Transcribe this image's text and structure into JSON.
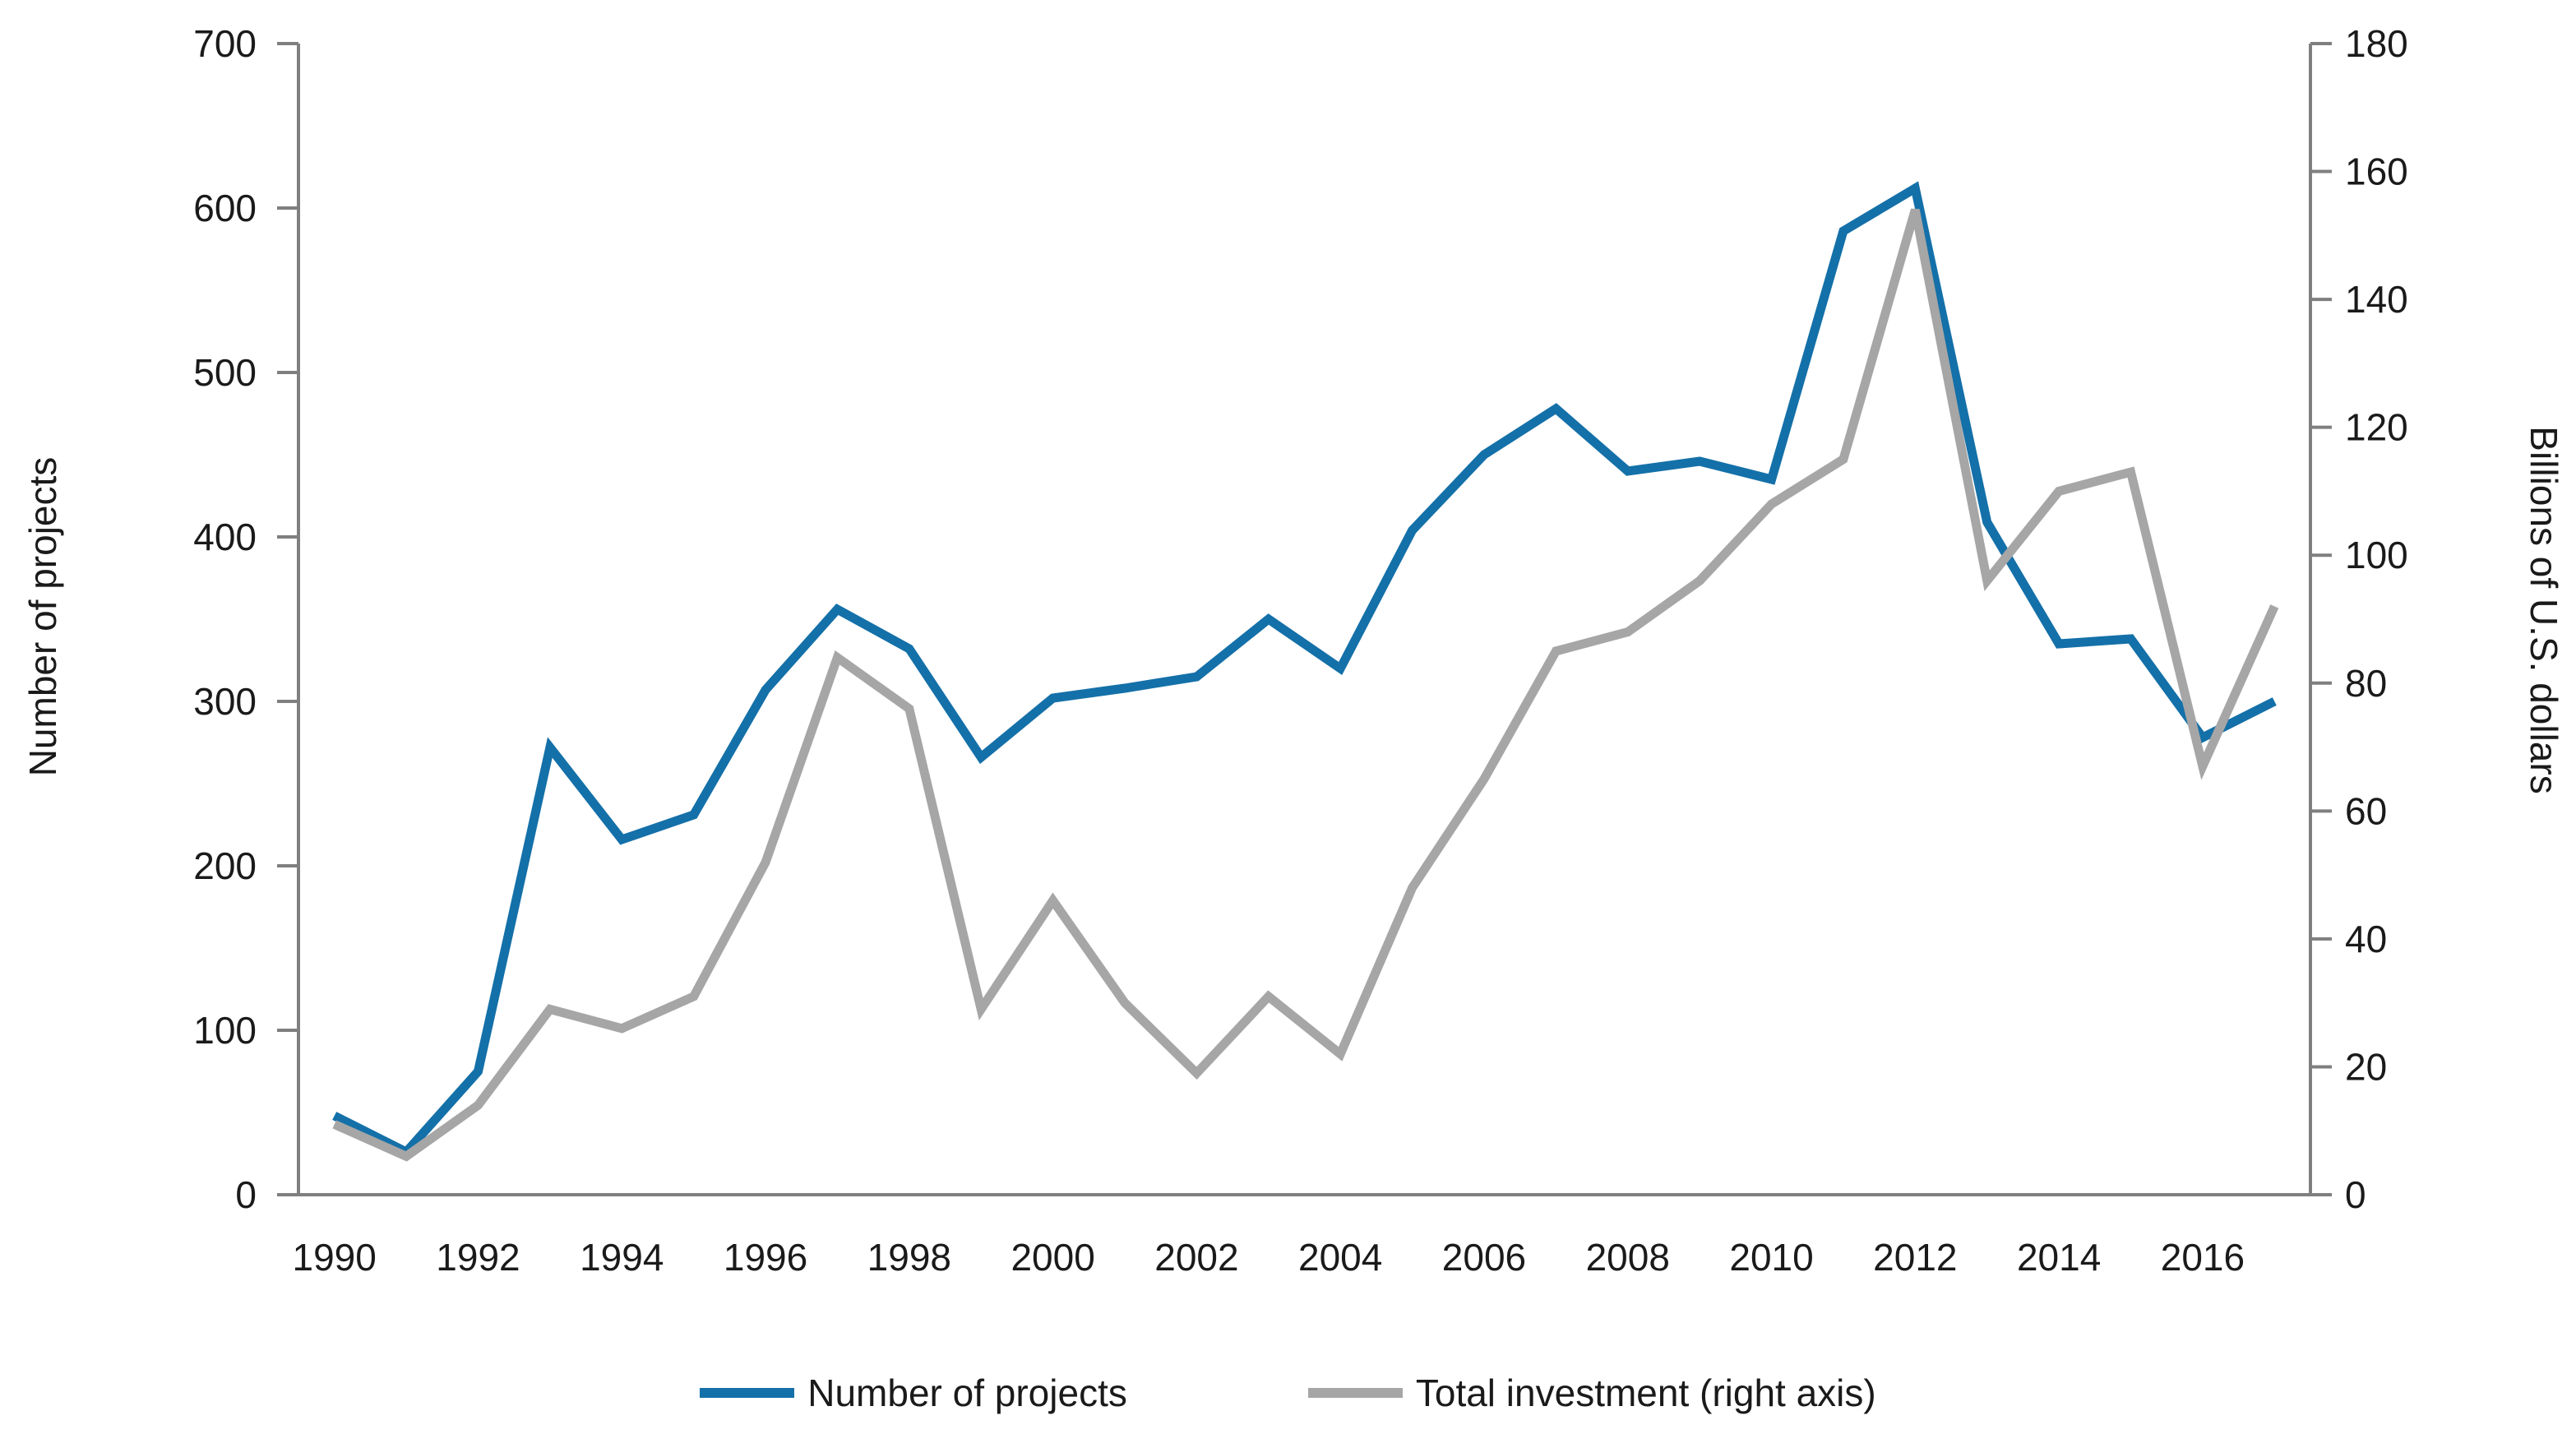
{
  "chart_data": {
    "type": "line",
    "x": [
      1990,
      1991,
      1992,
      1993,
      1994,
      1995,
      1996,
      1997,
      1998,
      1999,
      2000,
      2001,
      2002,
      2003,
      2004,
      2005,
      2006,
      2007,
      2008,
      2009,
      2010,
      2011,
      2012,
      2013,
      2014,
      2015,
      2016,
      2017
    ],
    "series": [
      {
        "name": "Number of projects",
        "axis": "left",
        "color": "#1470a8",
        "values": [
          48,
          26,
          75,
          272,
          216,
          231,
          307,
          356,
          332,
          266,
          302,
          308,
          315,
          350,
          320,
          404,
          450,
          478,
          440,
          446,
          435,
          586,
          612,
          409,
          335,
          338,
          278,
          300
        ]
      },
      {
        "name": "Total investment (right axis)",
        "axis": "right",
        "color": "#a6a6a6",
        "values": [
          11,
          6,
          14,
          29,
          26,
          31,
          52,
          84,
          76,
          29,
          46,
          30,
          19,
          31,
          22,
          48,
          65,
          85,
          88,
          96,
          108,
          115,
          154,
          96,
          110,
          113,
          67,
          92
        ]
      }
    ],
    "left_axis": {
      "label": "Number of projects",
      "min": 0,
      "max": 700,
      "tick_interval": 100,
      "ticks": [
        0,
        100,
        200,
        300,
        400,
        500,
        600,
        700
      ]
    },
    "right_axis": {
      "label": "Billions of U.S. dollars",
      "min": 0,
      "max": 180,
      "tick_interval": 20,
      "ticks": [
        0,
        20,
        40,
        60,
        80,
        100,
        120,
        140,
        160,
        180
      ]
    },
    "x_tick_labels": [
      "1990",
      "1992",
      "1994",
      "1996",
      "1998",
      "2000",
      "2002",
      "2004",
      "2006",
      "2008",
      "2010",
      "2012",
      "2014",
      "2016"
    ],
    "grid": false,
    "legend_position": "bottom-center",
    "axis_line_color": "#7f7f7f",
    "text_color": "#1a1a1a"
  }
}
